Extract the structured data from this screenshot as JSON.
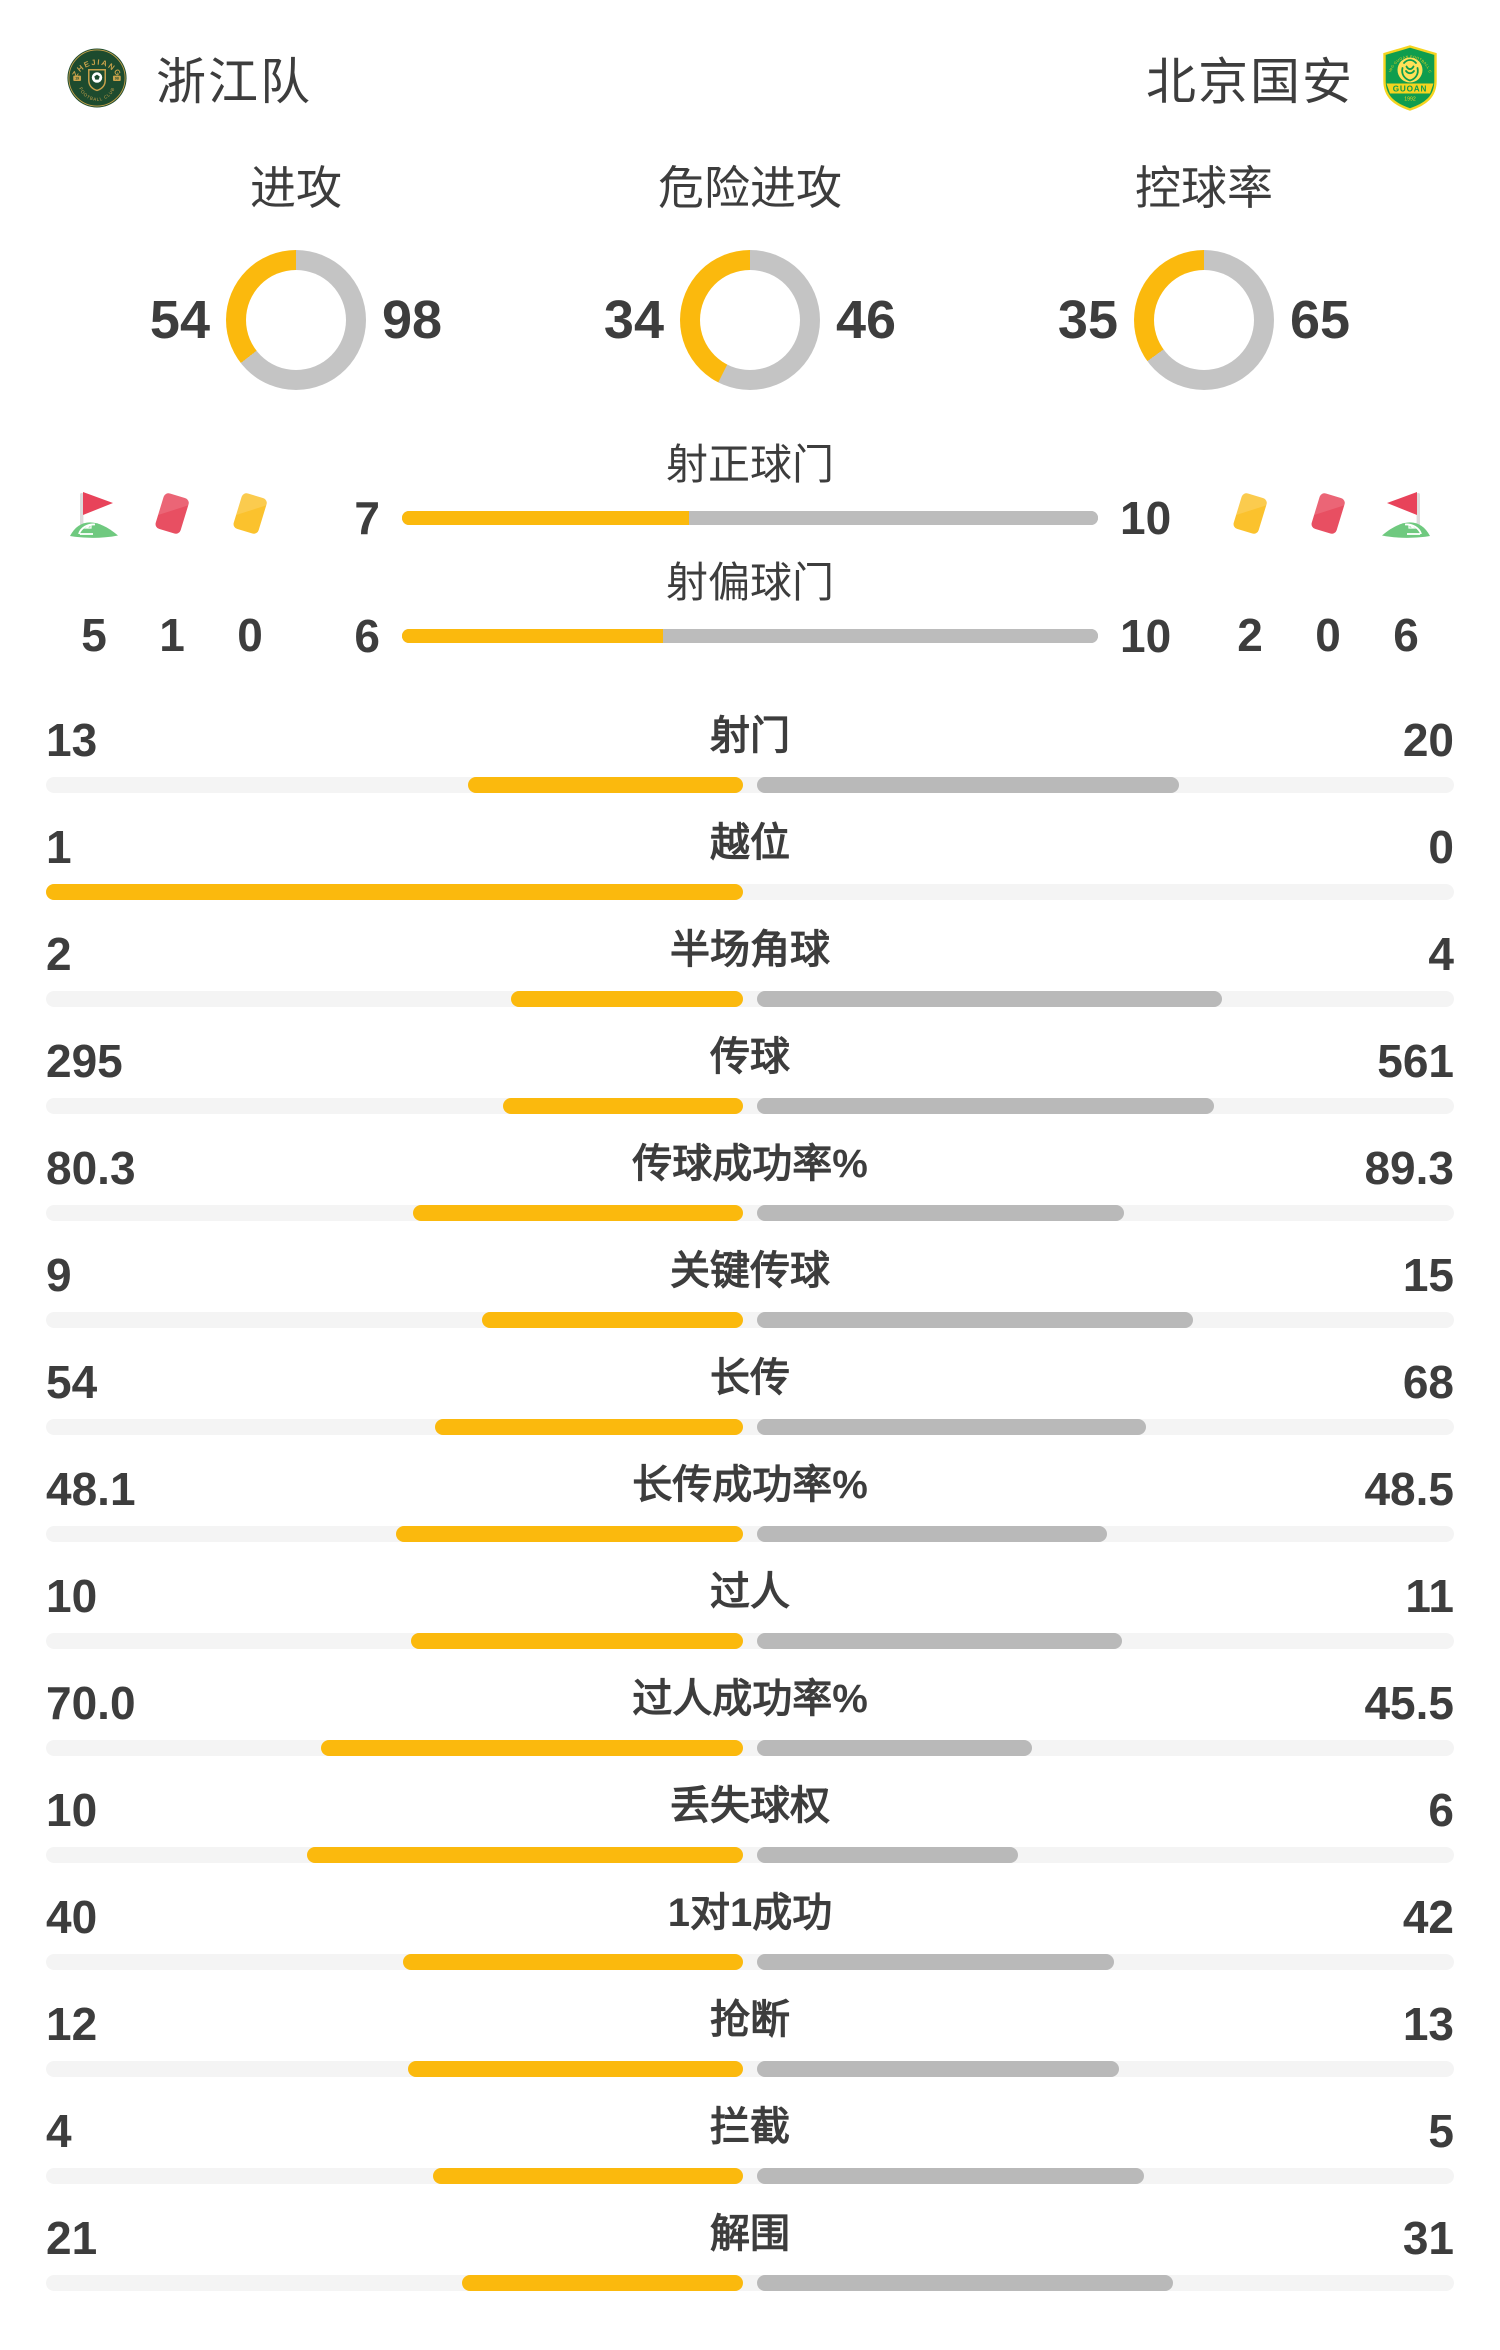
{
  "colors": {
    "accent": "#fbb90d",
    "away_fill": "#b9b9b9",
    "track": "#f4f4f4",
    "donut_track": "#c4c4c4",
    "text": "#3d3d3d",
    "red_card": "#e84f62",
    "yellow_card": "#fbc22d",
    "flag_red": "#e8435a",
    "flag_green": "#6fc97f"
  },
  "teams": {
    "home": {
      "name": "浙江队",
      "badge": {
        "top_text": "ZHEJIANG",
        "bottom_text": "FOOTBALL CLUB",
        "year_left": "19",
        "year_right": "98"
      }
    },
    "away": {
      "name": "北京国安",
      "badge": {
        "arc_text": "BEIJING GUOAN FOOTBALL CLUB",
        "banner_text": "GUOAN",
        "year": "1992"
      }
    }
  },
  "chart_data": {
    "type": "match-stats",
    "donuts": [
      {
        "title": "进攻",
        "home": "54",
        "away": "98"
      },
      {
        "title": "危险进攻",
        "home": "34",
        "away": "46"
      },
      {
        "title": "控球率",
        "home": "35",
        "away": "65"
      }
    ],
    "shot_bars": [
      {
        "title": "射正球门",
        "home": "7",
        "away": "10"
      },
      {
        "title": "射偏球门",
        "home": "6",
        "away": "10"
      }
    ],
    "discipline": {
      "home": [
        {
          "icon": "corner-flag",
          "value": "5"
        },
        {
          "icon": "red-card",
          "value": "1"
        },
        {
          "icon": "yellow-card",
          "value": "0"
        }
      ],
      "away": [
        {
          "icon": "yellow-card",
          "value": "2"
        },
        {
          "icon": "red-card",
          "value": "0"
        },
        {
          "icon": "corner-flag",
          "value": "6"
        }
      ]
    },
    "stat_rows": [
      {
        "label": "射门",
        "home": "13",
        "away": "20"
      },
      {
        "label": "越位",
        "home": "1",
        "away": "0"
      },
      {
        "label": "半场角球",
        "home": "2",
        "away": "4"
      },
      {
        "label": "传球",
        "home": "295",
        "away": "561"
      },
      {
        "label": "传球成功率%",
        "home": "80.3",
        "away": "89.3"
      },
      {
        "label": "关键传球",
        "home": "9",
        "away": "15"
      },
      {
        "label": "长传",
        "home": "54",
        "away": "68"
      },
      {
        "label": "长传成功率%",
        "home": "48.1",
        "away": "48.5"
      },
      {
        "label": "过人",
        "home": "10",
        "away": "11"
      },
      {
        "label": "过人成功率%",
        "home": "70.0",
        "away": "45.5"
      },
      {
        "label": "丢失球权",
        "home": "10",
        "away": "6"
      },
      {
        "label": "1对1成功",
        "home": "40",
        "away": "42"
      },
      {
        "label": "抢断",
        "home": "12",
        "away": "13"
      },
      {
        "label": "拦截",
        "home": "4",
        "away": "5"
      },
      {
        "label": "解围",
        "home": "21",
        "away": "31"
      }
    ]
  }
}
